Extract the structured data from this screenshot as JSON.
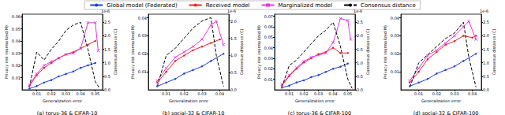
{
  "chart_data": [
    {
      "type": "line",
      "title": "(a) torus-36 & CIFAR-10",
      "legend": "top",
      "grid": false,
      "x_label": "Generalization error",
      "y_label": "Privacy risk (normalized M)",
      "y2_label": "Consensus distance (C)",
      "y2_offset_text": "1e-6",
      "xlim": [
        0,
        0.055
      ],
      "xticks": [
        0.01,
        0.02,
        0.03,
        0.04,
        0.05
      ],
      "ylim": [
        0,
        0.062
      ],
      "yticks": [
        0.01,
        0.02,
        0.03,
        0.04,
        0.05,
        0.06
      ],
      "y2lim": [
        0,
        2.8
      ],
      "y2ticks": [
        {
          "value": 0,
          "label": "0.0"
        },
        0.5,
        {
          "value": 1,
          "label": "1.0"
        },
        1.5,
        {
          "value": 2,
          "label": "2.0"
        },
        2.5
      ],
      "series": [
        {
          "name": "Global model (Federated)",
          "color": "#1f3fd6",
          "marker": "circle",
          "line_style": "solid",
          "x": [
            0.005,
            0.01,
            0.015,
            0.02,
            0.025,
            0.03,
            0.035,
            0.04,
            0.045,
            0.05
          ],
          "values": [
            0.001,
            0.003,
            0.006,
            0.008,
            0.011,
            0.013,
            0.015,
            0.018,
            0.02,
            0.022
          ]
        },
        {
          "name": "Received model",
          "color": "#e8262a",
          "marker": "circle",
          "line_style": "solid",
          "x": [
            0.005,
            0.01,
            0.015,
            0.02,
            0.025,
            0.03,
            0.035,
            0.04,
            0.045,
            0.05
          ],
          "values": [
            0.003,
            0.012,
            0.018,
            0.022,
            0.026,
            0.029,
            0.031,
            0.034,
            0.037,
            0.04
          ]
        },
        {
          "name": "Marginalized model",
          "color": "#e636e6",
          "marker": "x",
          "line_style": "solid",
          "x": [
            0.005,
            0.01,
            0.015,
            0.02,
            0.025,
            0.03,
            0.035,
            0.04,
            0.045,
            0.05,
            0.052
          ],
          "values": [
            0.004,
            0.013,
            0.02,
            0.023,
            0.026,
            0.029,
            0.03,
            0.034,
            0.055,
            0.055,
            0.032
          ]
        },
        {
          "name": "Consensus distance",
          "color": "#000000",
          "marker": "none",
          "line_style": "dashed",
          "axis": "y2",
          "x": [
            0.005,
            0.01,
            0.015,
            0.02,
            0.025,
            0.03,
            0.035,
            0.04,
            0.045,
            0.05,
            0.053
          ],
          "values": [
            0.1,
            1.4,
            1.1,
            1.5,
            1.8,
            2.2,
            2.4,
            2.5,
            1.5,
            0.3,
            0.05
          ]
        }
      ]
    },
    {
      "type": "line",
      "title": "(b) social-32 & CIFAR-10",
      "legend": "top",
      "grid": false,
      "x_label": "Generalization error",
      "y_label": "Privacy risk (normalized M)",
      "y2_label": "Consensus distance (C)",
      "y2_offset_text": "1e-6",
      "xlim": [
        0,
        0.045
      ],
      "xticks": [
        0.01,
        0.02,
        0.03,
        0.04
      ],
      "ylim": [
        0,
        0.042
      ],
      "yticks": [
        0.01,
        0.02,
        0.03,
        0.04
      ],
      "y2lim": [
        0,
        2.2
      ],
      "y2ticks": [
        {
          "value": 0,
          "label": "0.0"
        },
        0.5,
        {
          "value": 1,
          "label": "1.0"
        },
        1.5,
        {
          "value": 2,
          "label": "2.0"
        }
      ],
      "series": [
        {
          "name": "Global model (Federated)",
          "color": "#1f3fd6",
          "marker": "circle",
          "line_style": "solid",
          "x": [
            0.005,
            0.01,
            0.015,
            0.02,
            0.025,
            0.03,
            0.035,
            0.042
          ],
          "values": [
            0.002,
            0.004,
            0.006,
            0.009,
            0.011,
            0.013,
            0.016,
            0.02
          ]
        },
        {
          "name": "Received model",
          "color": "#e8262a",
          "marker": "circle",
          "line_style": "solid",
          "x": [
            0.005,
            0.01,
            0.015,
            0.02,
            0.025,
            0.03,
            0.035,
            0.04
          ],
          "values": [
            0.004,
            0.01,
            0.016,
            0.019,
            0.022,
            0.024,
            0.026,
            0.028
          ]
        },
        {
          "name": "Marginalized model",
          "color": "#e636e6",
          "marker": "x",
          "line_style": "solid",
          "x": [
            0.005,
            0.01,
            0.015,
            0.02,
            0.025,
            0.03,
            0.035,
            0.038,
            0.042
          ],
          "values": [
            0.005,
            0.012,
            0.018,
            0.021,
            0.024,
            0.028,
            0.036,
            0.038,
            0.025
          ]
        },
        {
          "name": "Consensus distance",
          "color": "#000000",
          "marker": "none",
          "line_style": "dashed",
          "axis": "y2",
          "x": [
            0.005,
            0.01,
            0.015,
            0.02,
            0.025,
            0.03,
            0.035,
            0.038,
            0.042
          ],
          "values": [
            0.1,
            1.0,
            1.2,
            1.5,
            1.8,
            2.0,
            2.1,
            1.0,
            0.1
          ]
        }
      ]
    },
    {
      "type": "line",
      "title": "(c) torus-36 & CIFAR-100",
      "legend": "top",
      "grid": false,
      "x_label": "Generalization error",
      "y_label": "Privacy risk (normalized M)",
      "y2_label": "Consensus distance (C)",
      "y2_offset_text": "1e-6",
      "xlim": [
        0,
        0.055
      ],
      "xticks": [
        0.01,
        0.02,
        0.03,
        0.04,
        0.05
      ],
      "ylim": [
        0,
        0.072
      ],
      "yticks": [
        0.01,
        0.02,
        0.03,
        0.04,
        0.05,
        0.06,
        0.07
      ],
      "y2lim": [
        0,
        2.8
      ],
      "y2ticks": [
        {
          "value": 0,
          "label": "0.0"
        },
        0.5,
        {
          "value": 1,
          "label": "1.0"
        },
        1.5,
        {
          "value": 2,
          "label": "2.0"
        },
        2.5
      ],
      "series": [
        {
          "name": "Global model (Federated)",
          "color": "#1f3fd6",
          "marker": "circle",
          "line_style": "solid",
          "x": [
            0.005,
            0.01,
            0.015,
            0.02,
            0.025,
            0.03,
            0.035,
            0.04,
            0.045,
            0.05
          ],
          "values": [
            0.002,
            0.004,
            0.007,
            0.009,
            0.012,
            0.014,
            0.017,
            0.02,
            0.022,
            0.025
          ]
        },
        {
          "name": "Received model",
          "color": "#e8262a",
          "marker": "circle",
          "line_style": "solid",
          "x": [
            0.005,
            0.01,
            0.015,
            0.02,
            0.025,
            0.03,
            0.035,
            0.04,
            0.045,
            0.05
          ],
          "values": [
            0.004,
            0.013,
            0.02,
            0.026,
            0.03,
            0.034,
            0.036,
            0.04,
            0.035,
            0.035
          ]
        },
        {
          "name": "Marginalized model",
          "color": "#e636e6",
          "marker": "x",
          "line_style": "solid",
          "x": [
            0.005,
            0.01,
            0.015,
            0.02,
            0.025,
            0.03,
            0.035,
            0.04,
            0.045,
            0.05,
            0.052
          ],
          "values": [
            0.005,
            0.014,
            0.021,
            0.027,
            0.031,
            0.033,
            0.035,
            0.045,
            0.068,
            0.066,
            0.048
          ]
        },
        {
          "name": "Consensus distance",
          "color": "#000000",
          "marker": "none",
          "line_style": "dashed",
          "axis": "y2",
          "x": [
            0.005,
            0.01,
            0.015,
            0.02,
            0.025,
            0.03,
            0.035,
            0.04,
            0.045,
            0.05,
            0.053
          ],
          "values": [
            0.1,
            0.9,
            1.1,
            1.4,
            1.7,
            2.0,
            2.2,
            2.5,
            1.6,
            0.4,
            0.05
          ]
        }
      ]
    },
    {
      "type": "line",
      "title": "(d) social-32 & CIFAR-100",
      "legend": "top",
      "grid": false,
      "x_label": "Generalization error",
      "y_label": "Privacy risk (normalized M)",
      "y2_label": "Consensus distance (C)",
      "y2_offset_text": "1e-6",
      "xlim": [
        0,
        0.045
      ],
      "xticks": [
        0.01,
        0.02,
        0.03,
        0.04
      ],
      "ylim": [
        0,
        0.042
      ],
      "yticks": [
        0.01,
        0.02,
        0.03,
        0.04
      ],
      "y2lim": [
        0,
        2.8
      ],
      "y2ticks": [
        {
          "value": 0,
          "label": "0.0"
        },
        0.5,
        {
          "value": 1,
          "label": "1.0"
        },
        1.5,
        {
          "value": 2,
          "label": "2.0"
        },
        2.5
      ],
      "series": [
        {
          "name": "Global model (Federated)",
          "color": "#1f3fd6",
          "marker": "circle",
          "line_style": "solid",
          "x": [
            0.005,
            0.01,
            0.015,
            0.02,
            0.025,
            0.03,
            0.035,
            0.042
          ],
          "values": [
            0.002,
            0.004,
            0.006,
            0.009,
            0.011,
            0.013,
            0.016,
            0.02
          ]
        },
        {
          "name": "Received model",
          "color": "#e8262a",
          "marker": "circle",
          "line_style": "solid",
          "x": [
            0.005,
            0.01,
            0.015,
            0.02,
            0.025,
            0.03,
            0.035,
            0.04,
            0.042
          ],
          "values": [
            0.004,
            0.01,
            0.017,
            0.021,
            0.025,
            0.027,
            0.03,
            0.029,
            0.03
          ]
        },
        {
          "name": "Marginalized model",
          "color": "#e636e6",
          "marker": "x",
          "line_style": "solid",
          "x": [
            0.005,
            0.01,
            0.015,
            0.02,
            0.025,
            0.03,
            0.035,
            0.038,
            0.042
          ],
          "values": [
            0.005,
            0.012,
            0.019,
            0.022,
            0.026,
            0.03,
            0.035,
            0.038,
            0.028
          ]
        },
        {
          "name": "Consensus distance",
          "color": "#000000",
          "marker": "none",
          "line_style": "dashed",
          "axis": "y2",
          "x": [
            0.005,
            0.01,
            0.015,
            0.02,
            0.025,
            0.03,
            0.035,
            0.038,
            0.042
          ],
          "values": [
            0.1,
            1.0,
            1.3,
            1.6,
            1.9,
            2.1,
            2.5,
            1.2,
            0.1
          ]
        }
      ]
    }
  ]
}
